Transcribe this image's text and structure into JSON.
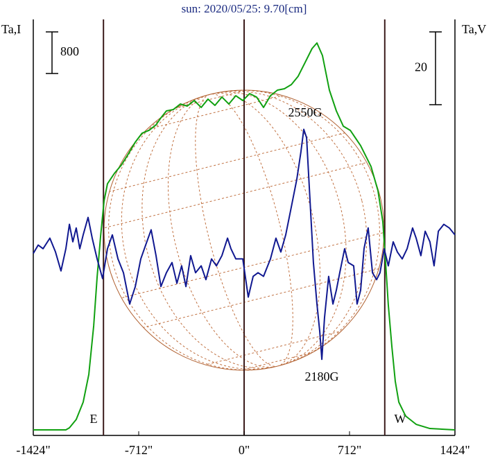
{
  "chart_data": {
    "type": "line",
    "title": "sun: 2020/05/25: 9.70[cm]",
    "y_label": "Ta,I",
    "y2_label": "Ta,V",
    "xlim": [
      -1424,
      1424
    ],
    "xticks": [
      {
        "value": -1424,
        "label": "-1424\""
      },
      {
        "value": -712,
        "label": "-712\""
      },
      {
        "value": 0,
        "label": "0\""
      },
      {
        "value": 712,
        "label": "712\""
      },
      {
        "value": 1424,
        "label": "1424\""
      }
    ],
    "ylim": [
      -100,
      7900
    ],
    "y2lim": [
      -50,
      64.3
    ],
    "vlines": [
      -950,
      0,
      950
    ],
    "vline_color": "#3a1a1a",
    "scale_bars": [
      {
        "value": 800,
        "axis": "y"
      },
      {
        "value": 20,
        "axis": "y2"
      }
    ],
    "annotations": [
      "2550G",
      "2180G",
      "E",
      "W"
    ],
    "series": [
      {
        "name": "Ta,I",
        "color": "#10a010",
        "axis": "y",
        "x": [
          -1424,
          -1321,
          -1204,
          -1180,
          -1134,
          -1087,
          -1049,
          -1016,
          -993,
          -969,
          -946,
          -923,
          -876,
          -829,
          -782,
          -735,
          -689,
          -642,
          -595,
          -562,
          -525,
          -478,
          -431,
          -384,
          -337,
          -290,
          -244,
          -197,
          -150,
          -103,
          -56,
          -9,
          37,
          84,
          131,
          178,
          225,
          272,
          319,
          365,
          412,
          459,
          492,
          529,
          576,
          623,
          670,
          717,
          787,
          857,
          904,
          937,
          956,
          974,
          998,
          1021,
          1045,
          1091,
          1162,
          1255,
          1424
        ],
        "values": [
          7,
          7,
          7,
          47,
          207,
          540,
          1073,
          2007,
          2940,
          3740,
          4407,
          4740,
          4940,
          5100,
          5313,
          5540,
          5713,
          5767,
          5873,
          6007,
          6140,
          6167,
          6273,
          6233,
          6340,
          6207,
          6367,
          6247,
          6407,
          6273,
          6433,
          6340,
          6473,
          6407,
          6207,
          6433,
          6540,
          6567,
          6647,
          6807,
          7073,
          7340,
          7447,
          7207,
          6540,
          6140,
          5847,
          5767,
          5473,
          5073,
          4607,
          4007,
          3207,
          2407,
          1607,
          940,
          540,
          273,
          113,
          33,
          7
        ]
      },
      {
        "name": "Ta,V",
        "color": "#101890",
        "axis": "y2",
        "x": [
          -1424,
          -1391,
          -1358,
          -1312,
          -1274,
          -1237,
          -1204,
          -1180,
          -1157,
          -1134,
          -1110,
          -1087,
          -1054,
          -1026,
          -993,
          -956,
          -923,
          -890,
          -852,
          -815,
          -773,
          -735,
          -698,
          -665,
          -628,
          -595,
          -562,
          -525,
          -487,
          -454,
          -422,
          -393,
          -361,
          -328,
          -290,
          -258,
          -220,
          -187,
          -150,
          -112,
          -89,
          -56,
          -9,
          28,
          61,
          94,
          131,
          178,
          215,
          248,
          281,
          319,
          356,
          384,
          403,
          422,
          445,
          468,
          492,
          511,
          525,
          543,
          571,
          600,
          623,
          646,
          679,
          703,
          740,
          763,
          787,
          810,
          838,
          867,
          895,
          918,
          946,
          974,
          1007,
          1035,
          1068,
          1101,
          1138,
          1162,
          1194,
          1223,
          1255,
          1283,
          1312,
          1349,
          1386,
          1424
        ],
        "values": [
          0,
          2.3,
          1.3,
          4.2,
          0.4,
          -4.8,
          1.3,
          8,
          3.2,
          7,
          1.3,
          5.1,
          9.9,
          4.2,
          -1.5,
          -6.9,
          1.3,
          5.1,
          -1.5,
          -5.3,
          -13.9,
          -9.1,
          -1.5,
          2.3,
          6.5,
          -0.6,
          -9.1,
          -5.3,
          -2.5,
          -8.2,
          -3.4,
          -9.1,
          -0.6,
          -5.3,
          -3.4,
          -7.2,
          -1.5,
          -3.4,
          -0.6,
          4.2,
          1.3,
          -1.5,
          -1.5,
          -12,
          -6.3,
          -5.3,
          -6.3,
          -1.5,
          4.2,
          0.4,
          5.1,
          12.8,
          20.4,
          28,
          34.1,
          31.8,
          14.7,
          -2.5,
          -13.9,
          -21.5,
          -29.1,
          -17.7,
          -6.3,
          -13.9,
          -10.1,
          -5.3,
          1.3,
          -2.5,
          -3.4,
          -13.9,
          -10.1,
          1.3,
          7,
          -5.3,
          -7.2,
          -5.3,
          1.3,
          -3.4,
          3.2,
          0.4,
          -1.5,
          1.3,
          7,
          4.2,
          -0.6,
          6.1,
          3.2,
          -3.4,
          6.1,
          8,
          7,
          5.1
        ]
      }
    ]
  }
}
